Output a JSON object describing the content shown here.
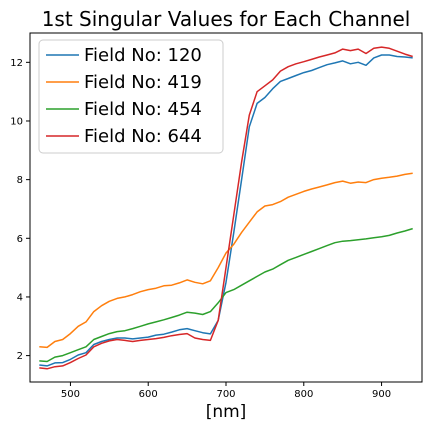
{
  "chart_data": {
    "type": "line",
    "title": "1st Singular Values for Each Channel",
    "xlabel": "[nm]",
    "ylabel": "",
    "xlim": [
      448,
      952
    ],
    "ylim": [
      1.1,
      13.0
    ],
    "xticks": [
      500,
      600,
      700,
      800,
      900
    ],
    "yticks": [
      2,
      4,
      6,
      8,
      10,
      12
    ],
    "grid": false,
    "legend_position": "upper-left",
    "colors": [
      "#1f77b4",
      "#ff7f0e",
      "#2ca02c",
      "#d62728"
    ],
    "series": [
      {
        "name": "Field No: 120",
        "x": [
          460,
          470,
          480,
          490,
          500,
          510,
          520,
          530,
          540,
          550,
          560,
          570,
          580,
          590,
          600,
          610,
          620,
          630,
          640,
          650,
          660,
          670,
          680,
          690,
          700,
          710,
          720,
          730,
          740,
          750,
          760,
          770,
          780,
          790,
          800,
          810,
          820,
          830,
          840,
          850,
          860,
          870,
          880,
          890,
          900,
          910,
          920,
          930,
          940
        ],
        "y": [
          1.68,
          1.65,
          1.75,
          1.76,
          1.87,
          2.02,
          2.1,
          2.38,
          2.48,
          2.55,
          2.6,
          2.6,
          2.57,
          2.6,
          2.63,
          2.7,
          2.73,
          2.8,
          2.88,
          2.92,
          2.85,
          2.78,
          2.74,
          3.2,
          4.5,
          6.2,
          8.0,
          9.8,
          10.6,
          10.8,
          11.1,
          11.35,
          11.45,
          11.55,
          11.65,
          11.72,
          11.82,
          11.92,
          11.98,
          12.05,
          11.95,
          12.0,
          11.9,
          12.15,
          12.25,
          12.25,
          12.2,
          12.18,
          12.15
        ]
      },
      {
        "name": "Field No: 419",
        "x": [
          460,
          470,
          480,
          490,
          500,
          510,
          520,
          530,
          540,
          550,
          560,
          570,
          580,
          590,
          600,
          610,
          620,
          630,
          640,
          650,
          660,
          670,
          680,
          690,
          700,
          710,
          720,
          730,
          740,
          750,
          760,
          770,
          780,
          790,
          800,
          810,
          820,
          830,
          840,
          850,
          860,
          870,
          880,
          890,
          900,
          910,
          920,
          930,
          940
        ],
        "y": [
          2.3,
          2.28,
          2.48,
          2.55,
          2.75,
          3.0,
          3.15,
          3.5,
          3.7,
          3.85,
          3.95,
          4.0,
          4.08,
          4.18,
          4.25,
          4.3,
          4.38,
          4.4,
          4.48,
          4.58,
          4.5,
          4.45,
          4.55,
          5.0,
          5.5,
          5.8,
          6.2,
          6.55,
          6.9,
          7.1,
          7.15,
          7.25,
          7.4,
          7.5,
          7.6,
          7.68,
          7.75,
          7.82,
          7.9,
          7.95,
          7.88,
          7.92,
          7.9,
          8.0,
          8.05,
          8.08,
          8.12,
          8.18,
          8.22
        ]
      },
      {
        "name": "Field No: 454",
        "x": [
          460,
          470,
          480,
          490,
          500,
          510,
          520,
          530,
          540,
          550,
          560,
          570,
          580,
          590,
          600,
          610,
          620,
          630,
          640,
          650,
          660,
          670,
          680,
          690,
          700,
          710,
          720,
          730,
          740,
          750,
          760,
          770,
          780,
          790,
          800,
          810,
          820,
          830,
          840,
          850,
          860,
          870,
          880,
          890,
          900,
          910,
          920,
          930,
          940
        ],
        "y": [
          1.82,
          1.8,
          1.95,
          2.0,
          2.1,
          2.2,
          2.3,
          2.55,
          2.65,
          2.75,
          2.82,
          2.85,
          2.92,
          3.0,
          3.08,
          3.15,
          3.22,
          3.3,
          3.38,
          3.48,
          3.45,
          3.4,
          3.5,
          3.8,
          4.15,
          4.25,
          4.4,
          4.55,
          4.7,
          4.85,
          4.95,
          5.1,
          5.25,
          5.35,
          5.45,
          5.55,
          5.65,
          5.75,
          5.85,
          5.9,
          5.92,
          5.95,
          5.98,
          6.02,
          6.05,
          6.1,
          6.18,
          6.25,
          6.33
        ]
      },
      {
        "name": "Field No: 644",
        "x": [
          460,
          470,
          480,
          490,
          500,
          510,
          520,
          530,
          540,
          550,
          560,
          570,
          580,
          590,
          600,
          610,
          620,
          630,
          640,
          650,
          660,
          670,
          680,
          690,
          700,
          710,
          720,
          730,
          740,
          750,
          760,
          770,
          780,
          790,
          800,
          810,
          820,
          830,
          840,
          850,
          860,
          870,
          880,
          890,
          900,
          910,
          920,
          930,
          940
        ],
        "y": [
          1.58,
          1.55,
          1.62,
          1.65,
          1.76,
          1.9,
          2.02,
          2.3,
          2.42,
          2.5,
          2.55,
          2.52,
          2.48,
          2.52,
          2.55,
          2.58,
          2.62,
          2.68,
          2.72,
          2.75,
          2.6,
          2.55,
          2.52,
          3.2,
          5.0,
          6.8,
          8.6,
          10.2,
          11.0,
          11.2,
          11.4,
          11.7,
          11.85,
          11.95,
          12.02,
          12.1,
          12.18,
          12.25,
          12.32,
          12.45,
          12.4,
          12.45,
          12.3,
          12.48,
          12.52,
          12.48,
          12.38,
          12.28,
          12.2
        ]
      }
    ]
  }
}
